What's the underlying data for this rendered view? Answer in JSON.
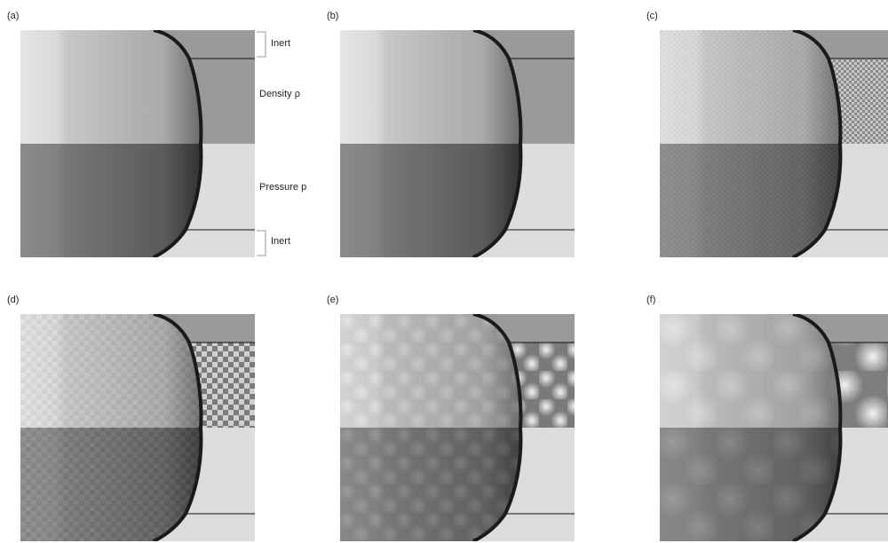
{
  "panels": [
    {
      "label": "(a)"
    },
    {
      "label": "(b)"
    },
    {
      "label": "(c)"
    },
    {
      "label": "(d)"
    },
    {
      "label": "(e)"
    },
    {
      "label": "(f)"
    }
  ],
  "annotations": {
    "inert_top": "Inert",
    "density": "Density ρ",
    "pressure": "Pressure p",
    "inert_bottom": "Inert"
  }
}
